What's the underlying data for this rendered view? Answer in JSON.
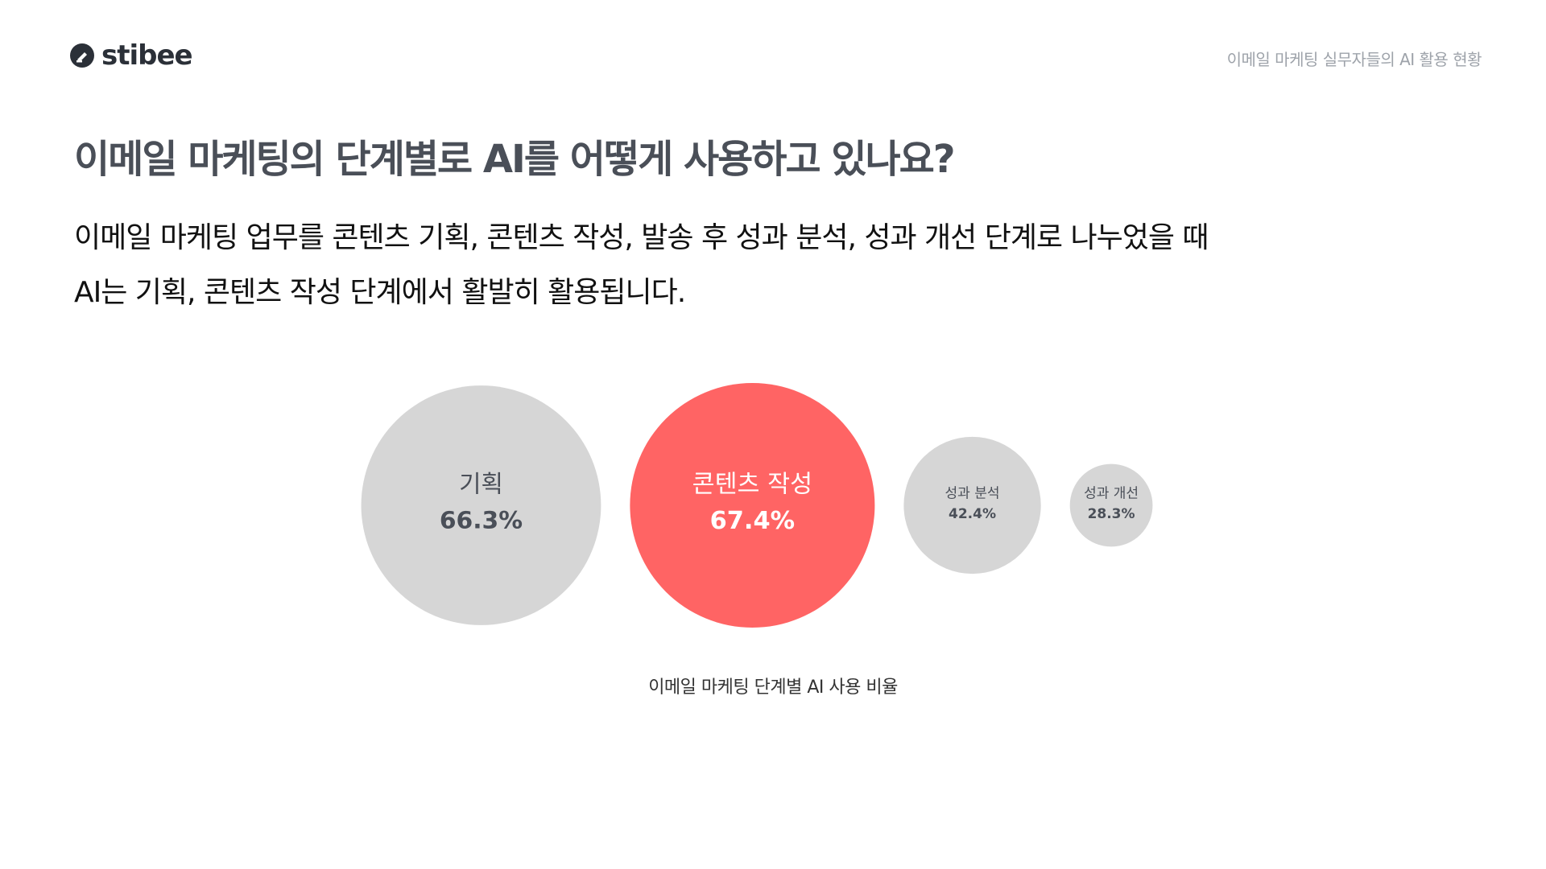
{
  "header": {
    "logo_text": "stibee",
    "report_title": "이메일 마케팅 실무자들의 AI 활용 현황"
  },
  "page": {
    "title": "이메일 마케팅의 단계별로 AI를 어떻게 사용하고 있나요?",
    "description_line1": "이메일 마케팅 업무를 콘텐츠 기획, 콘텐츠 작성, 발송 후 성과 분석, 성과 개선 단계로 나누었을 때",
    "description_line2": "AI는 기획, 콘텐츠 작성 단계에서 활발히 활용됩니다."
  },
  "chart_data": {
    "type": "bubble",
    "title": "",
    "caption": "이메일 마케팅 단계별 AI 사용 비율",
    "unit": "%",
    "categories": [
      "기획",
      "콘텐츠 작성",
      "성과 분석",
      "성과 개선"
    ],
    "values": [
      66.3,
      67.4,
      42.4,
      28.3
    ],
    "value_labels": [
      "66.3%",
      "67.4%",
      "42.4%",
      "28.3%"
    ],
    "highlight_index": 1,
    "colors": {
      "default": "#d6d6d6",
      "highlight": "#ff6464",
      "default_text": "#4a4f58",
      "highlight_text": "#ffffff"
    }
  },
  "colors": {
    "logo": "#2b3038",
    "title": "#4a4f58",
    "muted": "#9ea3aa"
  }
}
